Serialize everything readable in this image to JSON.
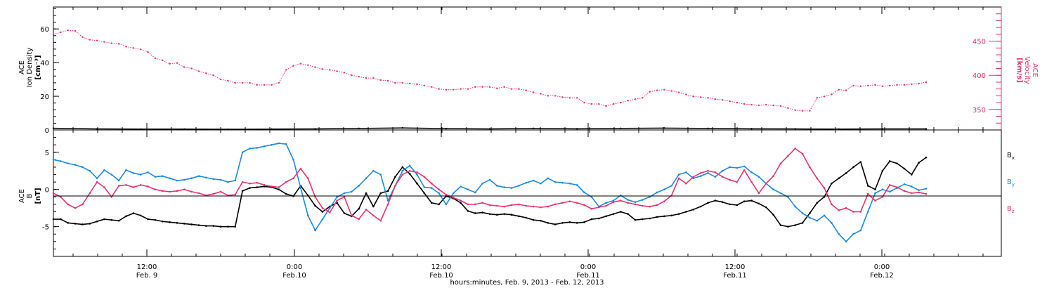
{
  "colors": {
    "pink": "#e8336b",
    "blue": "#1a8ae6",
    "black": "#000000"
  },
  "chart_data": [
    {
      "type": "scatter",
      "panel": "top",
      "ylabel_left": [
        "ACE",
        "Ion Density",
        "[cm⁻³]"
      ],
      "ylabel_right": [
        "ACE",
        "Velocity",
        "[km/s]"
      ],
      "ylim_left": [
        0,
        73
      ],
      "ylim_right": [
        320,
        500
      ],
      "left_ticks": [
        "0",
        "20",
        "40",
        "60"
      ],
      "right_ticks": [
        "350",
        "400",
        "450"
      ],
      "series": [
        {
          "axis": "right",
          "color": "pink",
          "x": [
            1,
            2,
            3,
            4,
            5,
            6,
            7,
            8,
            9,
            10,
            11,
            12,
            13,
            14,
            15,
            16,
            17,
            18,
            19,
            20,
            21,
            22,
            23,
            24,
            25,
            26,
            27,
            28,
            29,
            30,
            31,
            32,
            33,
            34,
            35,
            36,
            37,
            38,
            39,
            40,
            41,
            42,
            43,
            44,
            45,
            46,
            47,
            48,
            49,
            50,
            51,
            52,
            53,
            54,
            55,
            56,
            57,
            58,
            59,
            60,
            61,
            62,
            63,
            64,
            65,
            66,
            67,
            68,
            69,
            70,
            71,
            72,
            73,
            74,
            75,
            76,
            77,
            78,
            79,
            80,
            81,
            82,
            83,
            84,
            85,
            86,
            87,
            88,
            89,
            90,
            91,
            92,
            93,
            94,
            95,
            96,
            97,
            98,
            99,
            100,
            101,
            102,
            103,
            104,
            105,
            106,
            107,
            108,
            109,
            110,
            111,
            112,
            113,
            114,
            115,
            116,
            117,
            118,
            119,
            120,
            121
          ],
          "y": [
            460,
            463,
            466,
            465,
            456,
            452,
            451,
            449,
            447,
            446,
            442,
            440,
            438,
            434,
            425,
            422,
            417,
            418,
            412,
            410,
            406,
            403,
            400,
            394,
            392,
            389,
            389,
            389,
            386,
            386,
            386,
            389,
            408,
            414,
            417,
            415,
            412,
            409,
            408,
            406,
            404,
            400,
            398,
            396,
            396,
            393,
            392,
            389,
            389,
            388,
            387,
            385,
            383,
            380,
            379,
            379,
            380,
            380,
            383,
            383,
            383,
            381,
            383,
            380,
            380,
            378,
            375,
            373,
            370,
            370,
            368,
            367,
            367,
            360,
            358,
            358,
            355,
            358,
            360,
            363,
            365,
            367,
            376,
            378,
            379,
            377,
            375,
            372,
            369,
            368,
            367,
            365,
            364,
            362,
            360,
            358,
            357,
            356,
            357,
            356,
            355,
            352,
            349,
            348,
            348,
            367,
            369,
            372,
            379,
            378,
            385,
            384,
            385,
            386,
            384,
            385,
            386,
            386,
            387,
            388,
            390
          ]
        },
        {
          "axis": "left",
          "color": "black",
          "x": [
            1,
            7,
            13,
            19,
            25,
            31,
            37,
            43,
            49,
            55,
            61,
            67,
            73,
            79,
            85,
            91,
            97,
            103,
            109,
            115,
            121
          ],
          "y": [
            1.0,
            0.6,
            0.5,
            0.5,
            0.4,
            0.5,
            0.6,
            0.9,
            1.2,
            0.8,
            0.6,
            0.9,
            0.7,
            0.9,
            1.1,
            0.9,
            0.7,
            0.6,
            0.5,
            0.6,
            0.6
          ]
        }
      ]
    },
    {
      "type": "scatter",
      "panel": "bottom",
      "ylabel_left": [
        "ACE",
        "B",
        "[nT]"
      ],
      "ylim": [
        -9,
        8
      ],
      "left_ticks": [
        "-5",
        "0",
        "5"
      ],
      "legend": [
        {
          "label": "B",
          "sub": "x",
          "color": "black"
        },
        {
          "label": "B",
          "sub": "y",
          "color": "blue"
        },
        {
          "label": "B",
          "sub": "z",
          "color": "pink"
        }
      ],
      "series": [
        {
          "name": "Bx",
          "color": "black",
          "x": [
            1,
            2,
            3,
            4,
            5,
            6,
            7,
            8,
            9,
            10,
            11,
            12,
            13,
            14,
            15,
            16,
            17,
            18,
            19,
            20,
            21,
            22,
            23,
            24,
            25,
            26,
            27,
            28,
            29,
            30,
            31,
            32,
            33,
            34,
            35,
            36,
            37,
            38,
            39,
            40,
            41,
            42,
            43,
            44,
            45,
            46,
            47,
            48,
            49,
            50,
            51,
            52,
            53,
            54,
            55,
            56,
            57,
            58,
            59,
            60,
            61,
            62,
            63,
            64,
            65,
            66,
            67,
            68,
            69,
            70,
            71,
            72,
            73,
            74,
            75,
            76,
            77,
            78,
            79,
            80,
            81,
            82,
            83,
            84,
            85,
            86,
            87,
            88,
            89,
            90,
            91,
            92,
            93,
            94,
            95,
            96,
            97,
            98,
            99,
            100,
            101,
            102,
            103,
            104,
            105,
            106,
            107,
            108,
            109,
            110,
            111,
            112,
            113,
            114,
            115,
            116,
            117,
            118,
            119,
            120,
            121
          ],
          "y": [
            -4.0,
            -4.0,
            -4.5,
            -4.6,
            -4.7,
            -4.6,
            -4.3,
            -4.0,
            -4.1,
            -4.2,
            -3.6,
            -3.2,
            -3.5,
            -4.0,
            -4.1,
            -4.3,
            -4.4,
            -4.5,
            -4.6,
            -4.7,
            -4.8,
            -4.9,
            -4.9,
            -5.0,
            -5.0,
            -5.0,
            -0.2,
            0.2,
            0.3,
            0.4,
            0.3,
            0.0,
            -0.6,
            -0.9,
            0.5,
            -0.8,
            -2.2,
            -3.0,
            -2.3,
            -1.8,
            -3.2,
            -3.6,
            -2.6,
            -0.5,
            -2.3,
            -0.5,
            -0.2,
            1.7,
            3.0,
            2.1,
            0.8,
            -0.5,
            -1.8,
            -2.0,
            -0.9,
            -1.2,
            -1.8,
            -2.9,
            -3.2,
            -3.1,
            -3.3,
            -3.4,
            -3.3,
            -3.4,
            -3.6,
            -3.8,
            -4.1,
            -4.2,
            -4.5,
            -4.7,
            -4.5,
            -4.4,
            -4.5,
            -4.4,
            -4.0,
            -3.9,
            -3.6,
            -3.3,
            -3.0,
            -3.3,
            -4.1,
            -4.0,
            -3.9,
            -3.7,
            -3.6,
            -3.5,
            -3.3,
            -3.0,
            -2.7,
            -2.3,
            -1.8,
            -1.5,
            -1.7,
            -2.0,
            -2.1,
            -1.6,
            -1.5,
            -1.9,
            -2.4,
            -3.4,
            -4.8,
            -5.0,
            -4.8,
            -4.5,
            -3.2,
            -1.8,
            -1.0,
            0.8,
            1.5,
            2.2,
            3.0,
            3.7,
            0.5,
            0.0,
            2.5,
            3.8,
            3.5,
            2.8,
            2.0,
            3.6,
            4.3
          ]
        },
        {
          "name": "By",
          "color": "blue",
          "x": [
            1,
            2,
            3,
            4,
            5,
            6,
            7,
            8,
            9,
            10,
            11,
            12,
            13,
            14,
            15,
            16,
            17,
            18,
            19,
            20,
            21,
            22,
            23,
            24,
            25,
            26,
            27,
            28,
            29,
            30,
            31,
            32,
            33,
            34,
            35,
            36,
            37,
            38,
            39,
            40,
            41,
            42,
            43,
            44,
            45,
            46,
            47,
            48,
            49,
            50,
            51,
            52,
            53,
            54,
            55,
            56,
            57,
            58,
            59,
            60,
            61,
            62,
            63,
            64,
            65,
            66,
            67,
            68,
            69,
            70,
            71,
            72,
            73,
            74,
            75,
            76,
            77,
            78,
            79,
            80,
            81,
            82,
            83,
            84,
            85,
            86,
            87,
            88,
            89,
            90,
            91,
            92,
            93,
            94,
            95,
            96,
            97,
            98,
            99,
            100,
            101,
            102,
            103,
            104,
            105,
            106,
            107,
            108,
            109,
            110,
            111,
            112,
            113,
            114,
            115,
            116,
            117,
            118,
            119,
            120,
            121
          ],
          "y": [
            4.0,
            3.8,
            3.5,
            3.3,
            3.0,
            2.5,
            1.5,
            2.6,
            2.0,
            1.2,
            2.6,
            2.2,
            2.0,
            2.3,
            1.7,
            1.8,
            1.5,
            1.2,
            1.3,
            1.5,
            1.8,
            1.6,
            1.4,
            1.3,
            1.0,
            1.2,
            5.0,
            5.5,
            5.6,
            5.8,
            6.0,
            6.2,
            6.1,
            4.0,
            0.2,
            -3.5,
            -5.5,
            -4.0,
            -2.5,
            -1.0,
            -0.5,
            -0.3,
            0.5,
            1.5,
            2.5,
            2.0,
            -1.5,
            0.5,
            2.5,
            3.2,
            2.0,
            0.3,
            0.2,
            -0.5,
            -2.0,
            -0.5,
            0.4,
            0.0,
            -0.4,
            0.8,
            1.3,
            0.5,
            0.3,
            0.2,
            0.5,
            0.9,
            1.2,
            0.8,
            1.5,
            1.0,
            0.9,
            0.8,
            0.6,
            -0.4,
            -1.0,
            -2.3,
            -1.8,
            -1.5,
            -0.8,
            -1.4,
            -1.7,
            -1.4,
            -1.0,
            -0.4,
            0.0,
            0.5,
            2.0,
            2.3,
            1.5,
            1.8,
            2.2,
            1.7,
            2.5,
            3.0,
            2.9,
            3.1,
            2.3,
            1.7,
            0.8,
            0.0,
            -0.5,
            -1.0,
            -2.3,
            -3.2,
            -3.8,
            -4.2,
            -3.5,
            -4.5,
            -6.0,
            -7.0,
            -6.0,
            -5.5,
            -3.0,
            -0.5,
            0.0,
            -0.3,
            0.2,
            0.7,
            0.4,
            -0.1,
            0.1
          ]
        },
        {
          "name": "Bz",
          "color": "pink",
          "x": [
            1,
            2,
            3,
            4,
            5,
            6,
            7,
            8,
            9,
            10,
            11,
            12,
            13,
            14,
            15,
            16,
            17,
            18,
            19,
            20,
            21,
            22,
            23,
            24,
            25,
            26,
            27,
            28,
            29,
            30,
            31,
            32,
            33,
            34,
            35,
            36,
            37,
            38,
            39,
            40,
            41,
            42,
            43,
            44,
            45,
            46,
            47,
            48,
            49,
            50,
            51,
            52,
            53,
            54,
            55,
            56,
            57,
            58,
            59,
            60,
            61,
            62,
            63,
            64,
            65,
            66,
            67,
            68,
            69,
            70,
            71,
            72,
            73,
            74,
            75,
            76,
            77,
            78,
            79,
            80,
            81,
            82,
            83,
            84,
            85,
            86,
            87,
            88,
            89,
            90,
            91,
            92,
            93,
            94,
            95,
            96,
            97,
            98,
            99,
            100,
            101,
            102,
            103,
            104,
            105,
            106,
            107,
            108,
            109,
            110,
            111,
            112,
            113,
            114,
            115,
            116,
            117,
            118,
            119,
            120,
            121
          ],
          "y": [
            -0.5,
            -1.0,
            -2.0,
            -2.5,
            -2.0,
            -0.5,
            1.0,
            0.3,
            -1.0,
            0.5,
            0.6,
            0.3,
            0.6,
            0.4,
            0.0,
            -0.2,
            -0.3,
            -0.2,
            0.0,
            -0.3,
            -0.5,
            -0.8,
            -0.6,
            -0.3,
            -0.8,
            -0.7,
            1.0,
            0.8,
            0.9,
            0.6,
            0.4,
            0.3,
            1.0,
            1.5,
            2.8,
            1.5,
            -1.0,
            -2.5,
            -3.1,
            -1.5,
            -1.0,
            -3.5,
            -4.0,
            -2.7,
            -3.5,
            -4.2,
            -2.0,
            0.5,
            2.0,
            2.5,
            2.3,
            1.7,
            0.8,
            0.0,
            -0.7,
            -1.1,
            -1.5,
            -2.0,
            -2.0,
            -1.8,
            -2.1,
            -2.2,
            -2.3,
            -2.1,
            -2.0,
            -2.2,
            -2.3,
            -2.4,
            -2.3,
            -2.0,
            -1.8,
            -1.6,
            -1.8,
            -2.1,
            -2.6,
            -2.4,
            -2.2,
            -1.7,
            -1.5,
            -1.8,
            -2.0,
            -2.2,
            -2.3,
            -2.1,
            -1.6,
            -0.8,
            1.5,
            0.8,
            1.7,
            2.2,
            2.5,
            2.3,
            1.7,
            1.3,
            1.0,
            2.6,
            1.0,
            -0.5,
            0.8,
            1.8,
            3.5,
            4.5,
            5.5,
            4.8,
            3.0,
            1.5,
            0.2,
            -2.0,
            -2.8,
            -2.5,
            -3.0,
            -3.0,
            -0.6,
            -1.5,
            -1.0,
            0.6,
            0.3,
            -0.2,
            -0.5,
            -0.4,
            -0.6
          ]
        }
      ]
    },
    {
      "type": "time-axis",
      "ticks": [
        {
          "time": "12:00",
          "day": "Feb. 9"
        },
        {
          "time": "0:00",
          "day": "Feb.10"
        },
        {
          "time": "12:00",
          "day": "Feb.10"
        },
        {
          "time": "0:00",
          "day": "Feb.11"
        },
        {
          "time": "12:00",
          "day": "Feb.11"
        },
        {
          "time": "0:00",
          "day": "Feb.12"
        }
      ],
      "xlabel": "hours:minutes, Feb.  9, 2013 - Feb. 12, 2013"
    }
  ]
}
